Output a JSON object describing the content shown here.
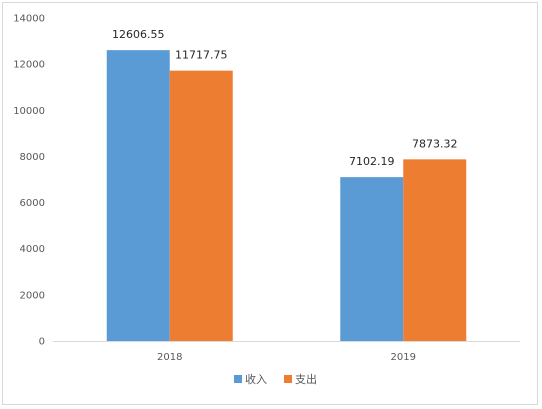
{
  "chart_data": {
    "type": "bar",
    "title": "",
    "xlabel": "",
    "ylabel": "",
    "categories": [
      "2018",
      "2019"
    ],
    "series": [
      {
        "name": "收入",
        "values": [
          12606.55,
          7102.19
        ],
        "color": "#5b9bd5",
        "labels": [
          "12606.55",
          "7102.19"
        ]
      },
      {
        "name": "支出",
        "values": [
          11717.75,
          7873.32
        ],
        "color": "#ed7d31",
        "labels": [
          "11717.75",
          "7873.32"
        ]
      }
    ],
    "ylim": [
      0,
      14000
    ],
    "yticks": [
      0,
      2000,
      4000,
      6000,
      8000,
      10000,
      12000,
      14000
    ],
    "grid": false,
    "legend_position": "bottom",
    "axis_color": "#d9d9d9"
  }
}
